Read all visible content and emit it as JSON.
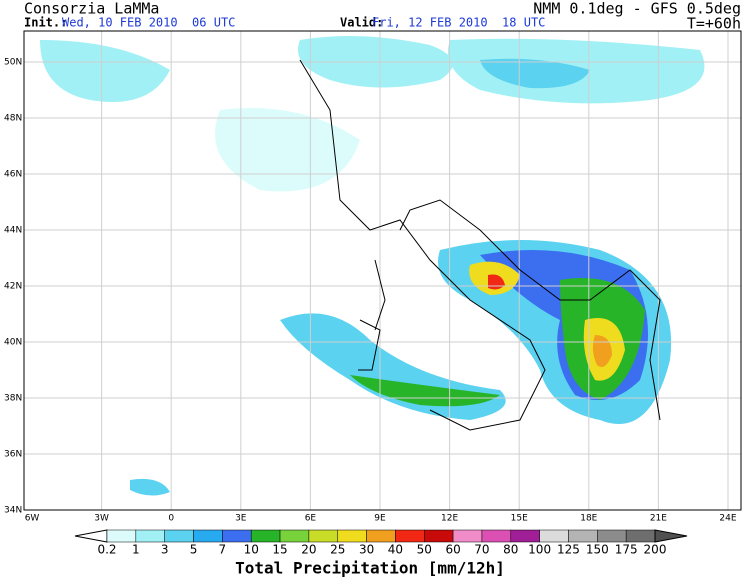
{
  "header": {
    "left_title": "Consorzia LaMMa",
    "init_label": "Init.:",
    "init_value": "Wed, 10 FEB 2010  06 UTC",
    "valid_label": "Valid:",
    "valid_value": "Fri, 12 FEB 2010  18 UTC",
    "right_title": "NMM 0.1deg - GFS 0.5deg",
    "forecast": "T=+60h"
  },
  "map": {
    "lat_labels": [
      "50N",
      "48N",
      "46N",
      "44N",
      "42N",
      "40N",
      "38N",
      "36N",
      "34N"
    ],
    "lon_labels": [
      "6W",
      "3W",
      "0",
      "3E",
      "6E",
      "9E",
      "12E",
      "15E",
      "18E",
      "21E",
      "24E"
    ]
  },
  "colorbar": {
    "labels": [
      "0.2",
      "1",
      "3",
      "5",
      "7",
      "10",
      "15",
      "20",
      "25",
      "30",
      "40",
      "50",
      "60",
      "70",
      "80",
      "100",
      "125",
      "150",
      "175",
      "200"
    ],
    "colors": [
      "#dcfcfc",
      "#a0f0f5",
      "#5ad2f0",
      "#28aaf0",
      "#3c6ef0",
      "#28b428",
      "#78d23c",
      "#c8dc28",
      "#f0dc1e",
      "#f0a01e",
      "#f02814",
      "#c80a0a",
      "#f08cc8",
      "#dc50b4",
      "#a01e96",
      "#dcdcdc",
      "#b4b4b4",
      "#8c8c8c",
      "#6e6e6e"
    ],
    "under_color": "#ffffff",
    "over_color": "#505050",
    "title": "Total Precipitation [mm/12h]"
  }
}
